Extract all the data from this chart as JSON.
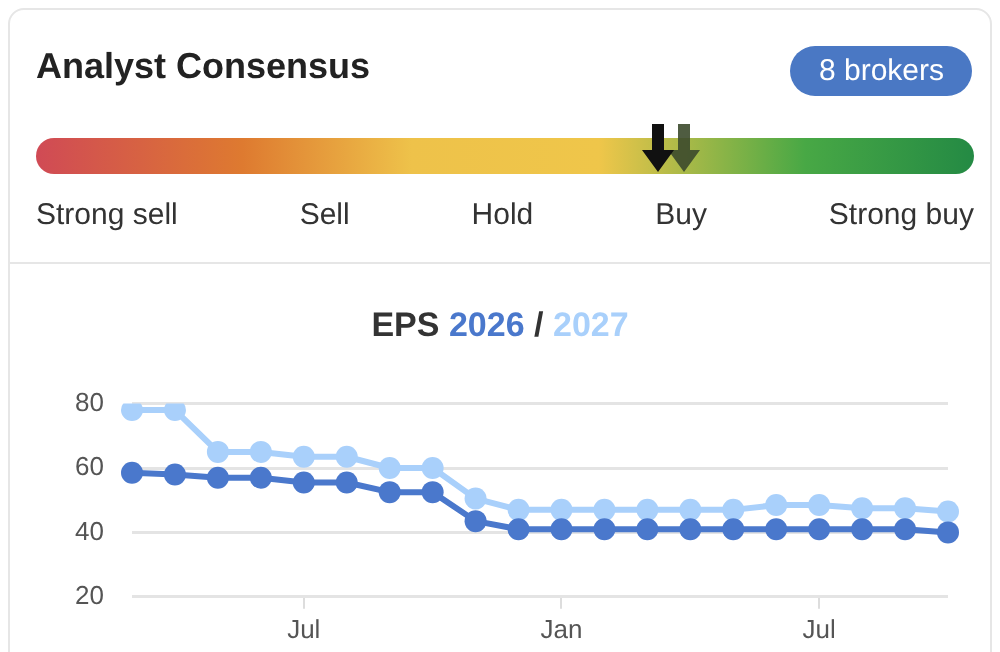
{
  "chart_data": [
    {
      "type": "other",
      "title": "Analyst Consensus",
      "categories": [
        "Strong sell",
        "Sell",
        "Hold",
        "Buy",
        "Strong buy"
      ],
      "annotations": [
        "8 brokers"
      ]
    },
    {
      "type": "line",
      "title": "EPS",
      "legend": "top",
      "marker": "circle",
      "grid": "y",
      "annotations": [
        "/"
      ],
      "categories": [
        null,
        null,
        null,
        null,
        "Jul",
        null,
        null,
        null,
        null,
        null,
        "Jan",
        null,
        null,
        null,
        null,
        null,
        "Jul",
        null,
        null,
        null
      ],
      "ylim": [
        20,
        80
      ],
      "yticks": [
        20,
        40,
        60,
        80
      ],
      "series": [
        {
          "name": "2026",
          "color": "#4a78cc",
          "values": [
            58.5,
            58,
            57,
            57,
            55.5,
            55.5,
            52.5,
            52.5,
            43.5,
            41,
            41,
            41,
            41,
            41,
            41,
            41,
            41,
            41,
            41,
            40
          ]
        },
        {
          "name": "2027",
          "color": "#a9d0fb",
          "values": [
            78,
            78,
            65,
            65,
            63.5,
            63.5,
            60,
            60,
            50.5,
            47,
            47,
            47,
            47,
            47,
            47,
            48.5,
            48.5,
            47.5,
            47.5,
            46.5
          ]
        }
      ]
    }
  ]
}
